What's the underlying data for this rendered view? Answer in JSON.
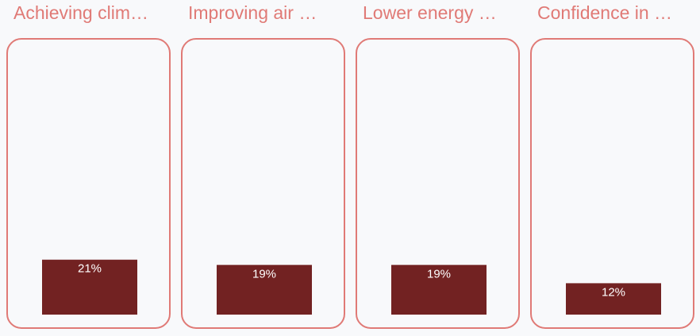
{
  "chart_data": {
    "type": "bar",
    "categories": [
      "Achieving clim…",
      "Improving air …",
      "Lower energy …",
      "Confidence in …"
    ],
    "values": [
      21,
      19,
      19,
      12
    ],
    "value_labels": [
      "21%",
      "19%",
      "19%",
      "12%"
    ],
    "color": "#722222",
    "ylim": [
      0,
      100
    ]
  }
}
